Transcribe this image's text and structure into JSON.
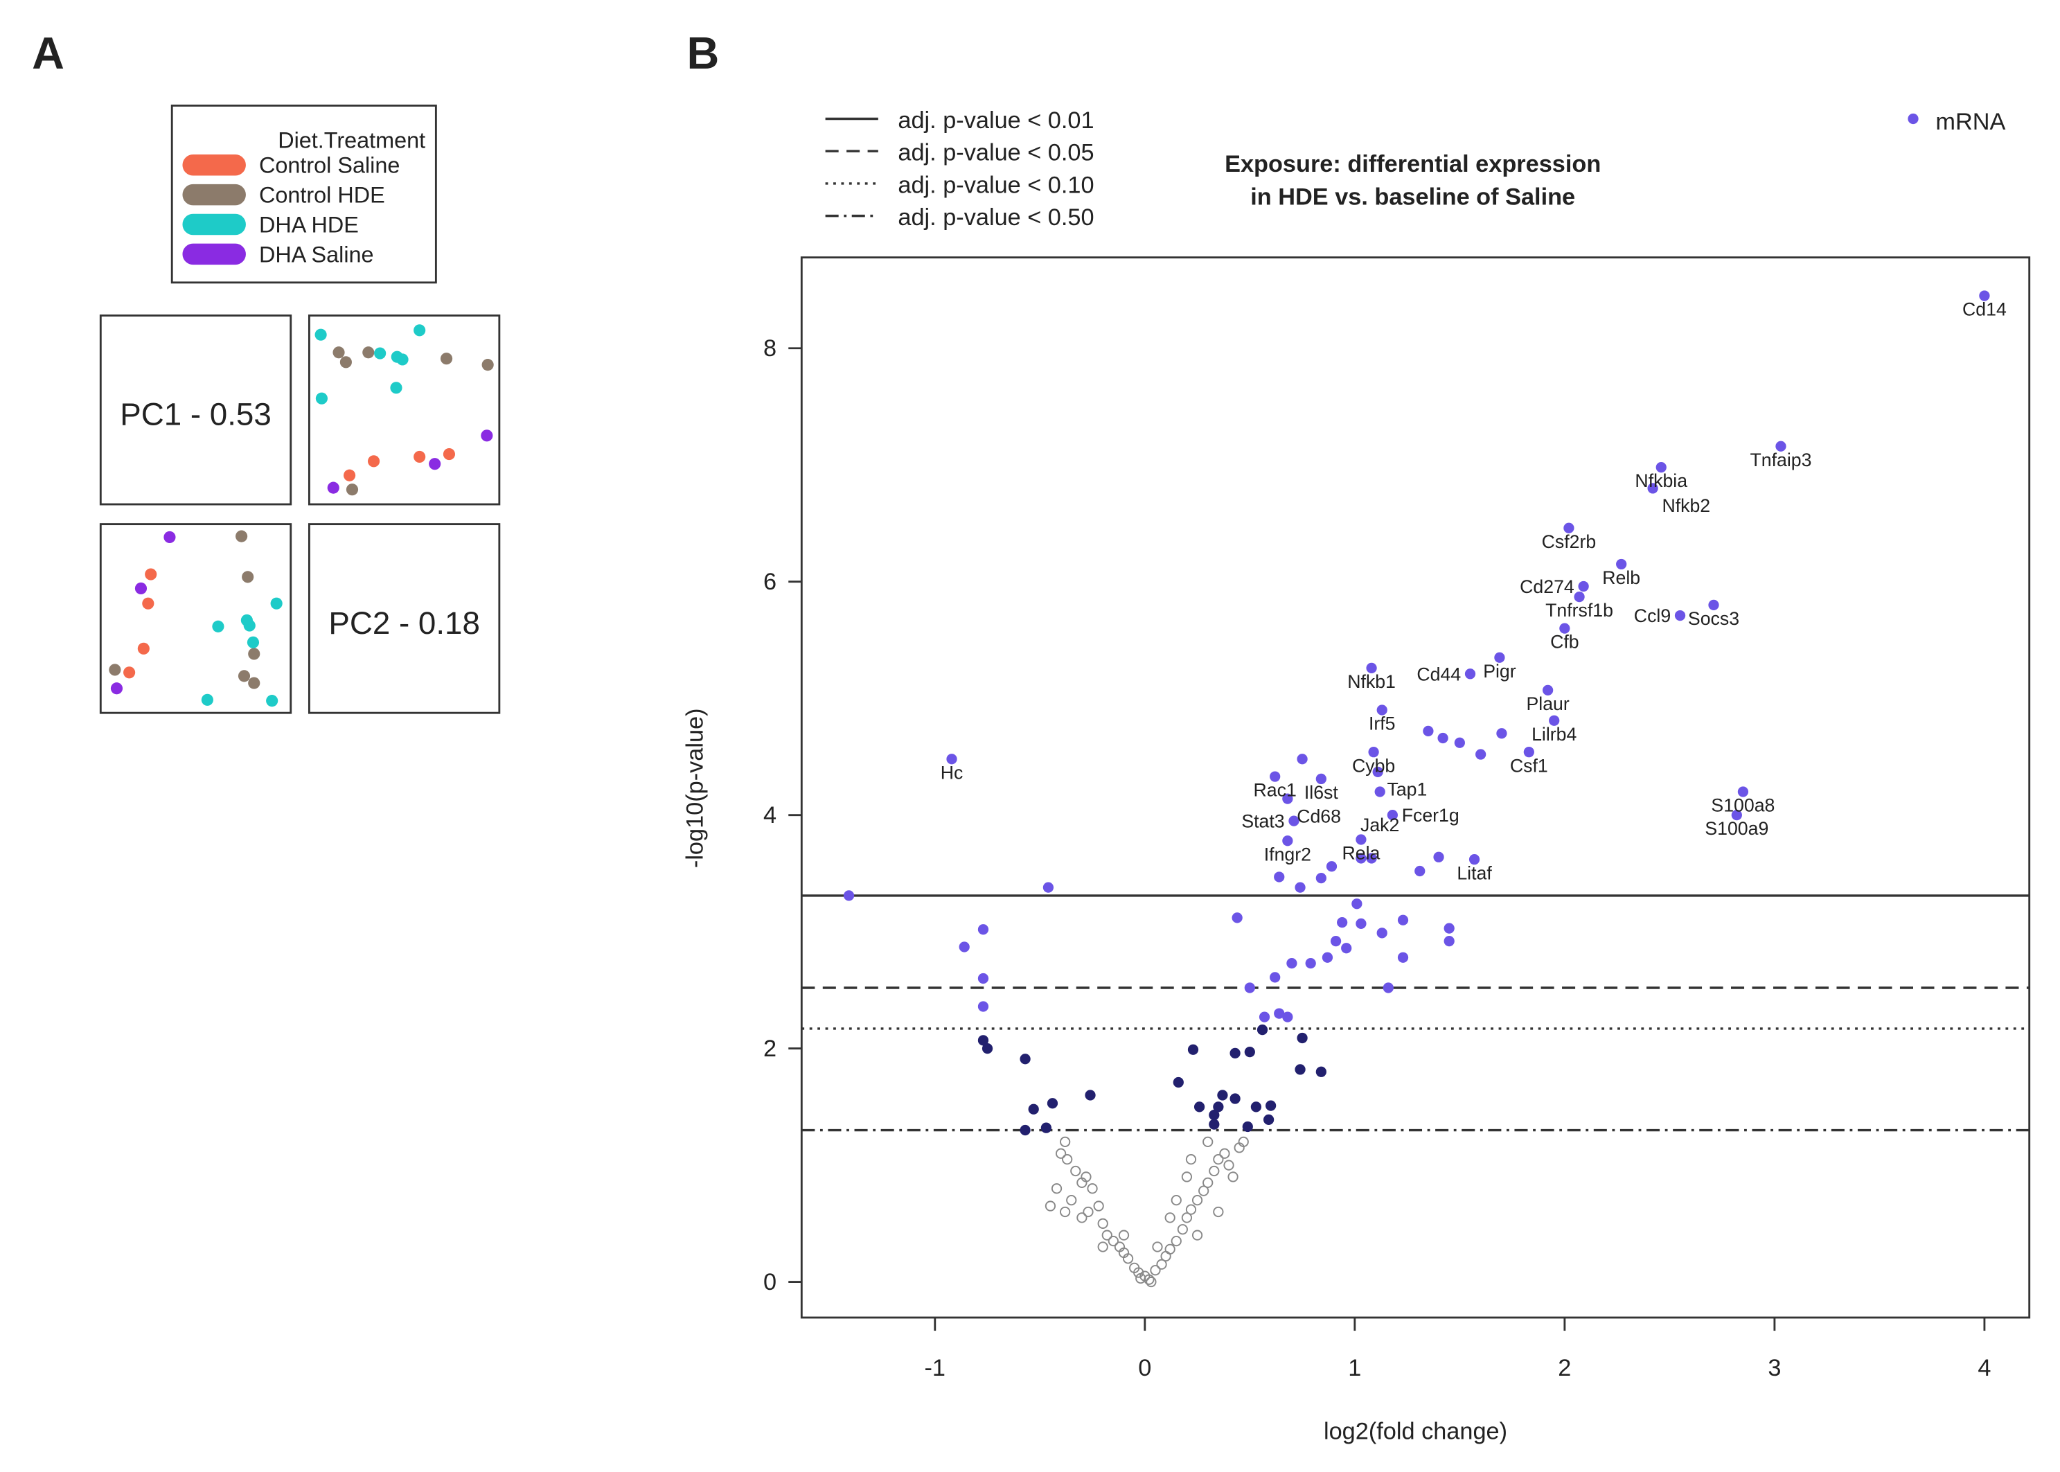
{
  "chart_data": [
    {
      "panel": "A",
      "type": "scatter",
      "panel_label": "A",
      "legend": {
        "title": "Diet.Treatment",
        "entries": [
          {
            "name": "Control Saline",
            "color": "#f4694b"
          },
          {
            "name": "Control HDE",
            "color": "#8c7b6b"
          },
          {
            "name": "DHA HDE",
            "color": "#1ecbc8"
          },
          {
            "name": "DHA Saline",
            "color": "#8a2be2"
          }
        ]
      },
      "diagonal_labels": [
        "PC1 - 0.53",
        "PC2 - 0.18"
      ],
      "score_range": [
        -1,
        1
      ],
      "series": [
        {
          "name": "DHA Saline",
          "points": [
            [
              -0.29,
              0.92
            ],
            [
              -0.61,
              0.34
            ],
            [
              -0.88,
              -0.79
            ]
          ]
        },
        {
          "name": "Control Saline",
          "points": [
            [
              -0.5,
              0.5
            ],
            [
              -0.53,
              0.17
            ],
            [
              -0.58,
              -0.34
            ],
            [
              -0.74,
              -0.61
            ]
          ]
        },
        {
          "name": "Control HDE",
          "points": [
            [
              0.51,
              0.93
            ],
            [
              0.58,
              0.47
            ],
            [
              0.65,
              -0.4
            ],
            [
              0.54,
              -0.65
            ],
            [
              0.65,
              -0.73
            ],
            [
              -0.9,
              -0.58
            ]
          ]
        },
        {
          "name": "DHA HDE",
          "points": [
            [
              0.25,
              -0.09
            ],
            [
              0.57,
              -0.02
            ],
            [
              0.6,
              -0.08
            ],
            [
              0.64,
              -0.27
            ],
            [
              0.9,
              0.17
            ],
            [
              0.85,
              -0.93
            ],
            [
              0.13,
              -0.92
            ]
          ]
        }
      ]
    },
    {
      "panel": "B",
      "type": "scatter",
      "panel_label": "B",
      "title": [
        "Exposure: differential expression",
        "in HDE vs. baseline of Saline"
      ],
      "xlabel": "log2(fold change)",
      "ylabel": "-log10(p-value)",
      "xlim": [
        -1.65,
        4.2
      ],
      "ylim": [
        -0.3,
        8.8
      ],
      "xticks": [
        -1,
        0,
        1,
        2,
        3,
        4
      ],
      "yticks": [
        0,
        2,
        4,
        6,
        8
      ],
      "legend_series": {
        "name": "mRNA",
        "color": "#6b54e6"
      },
      "thresholds": [
        {
          "label": "adj. p-value < 0.01",
          "y": 3.31,
          "style": "solid"
        },
        {
          "label": "adj. p-value < 0.05",
          "y": 2.52,
          "style": "dashed"
        },
        {
          "label": "adj. p-value < 0.10",
          "y": 2.17,
          "style": "dotted"
        },
        {
          "label": "adj. p-value < 0.50",
          "y": 1.3,
          "style": "dashdot"
        }
      ],
      "colors": {
        "significant": "#6b54e6",
        "moderate": "#22206e",
        "ns": "#888888"
      },
      "labeled_genes": [
        {
          "gene": "Cd14",
          "x": 4.0,
          "y": 8.45
        },
        {
          "gene": "Tnfaip3",
          "x": 3.03,
          "y": 7.16
        },
        {
          "gene": "Nfkbia",
          "x": 2.46,
          "y": 6.98
        },
        {
          "gene": "Nfkb2",
          "x": 2.42,
          "y": 6.8
        },
        {
          "gene": "Csf2rb",
          "x": 2.02,
          "y": 6.46
        },
        {
          "gene": "Relb",
          "x": 2.27,
          "y": 6.15
        },
        {
          "gene": "Cd274",
          "x": 2.09,
          "y": 5.96
        },
        {
          "gene": "Tnfrsf1b",
          "x": 2.07,
          "y": 5.87
        },
        {
          "gene": "Socs3",
          "x": 2.71,
          "y": 5.8
        },
        {
          "gene": "Ccl9",
          "x": 2.55,
          "y": 5.71
        },
        {
          "gene": "Cfb",
          "x": 2.0,
          "y": 5.6
        },
        {
          "gene": "Pigr",
          "x": 1.69,
          "y": 5.35
        },
        {
          "gene": "Cd44",
          "x": 1.55,
          "y": 5.21
        },
        {
          "gene": "Nfkb1",
          "x": 1.08,
          "y": 5.26
        },
        {
          "gene": "Plaur",
          "x": 1.92,
          "y": 5.07
        },
        {
          "gene": "Lilrb4",
          "x": 1.95,
          "y": 4.81
        },
        {
          "gene": "Irf5",
          "x": 1.13,
          "y": 4.9
        },
        {
          "gene": "Csf1",
          "x": 1.83,
          "y": 4.54
        },
        {
          "gene": "Cybb",
          "x": 1.09,
          "y": 4.54
        },
        {
          "gene": "Tap1",
          "x": 1.11,
          "y": 4.37
        },
        {
          "gene": "Il6st",
          "x": 0.84,
          "y": 4.31
        },
        {
          "gene": "Rac1",
          "x": 0.62,
          "y": 4.33
        },
        {
          "gene": "Cd68",
          "x": 0.68,
          "y": 4.14
        },
        {
          "gene": "Jak2",
          "x": 1.12,
          "y": 4.2
        },
        {
          "gene": "Fcer1g",
          "x": 1.18,
          "y": 4.0
        },
        {
          "gene": "Stat3",
          "x": 0.71,
          "y": 3.95
        },
        {
          "gene": "Ifngr2",
          "x": 0.68,
          "y": 3.78
        },
        {
          "gene": "Rela",
          "x": 1.03,
          "y": 3.79
        },
        {
          "gene": "Litaf",
          "x": 1.57,
          "y": 3.62
        },
        {
          "gene": "S100a8",
          "x": 2.85,
          "y": 4.2
        },
        {
          "gene": "S100a9",
          "x": 2.82,
          "y": 4.0
        },
        {
          "gene": "Hc",
          "x": -0.92,
          "y": 4.48
        }
      ],
      "significant_points": [
        [
          -1.41,
          3.31
        ],
        [
          -0.86,
          2.87
        ],
        [
          -0.77,
          3.02
        ],
        [
          -0.46,
          3.38
        ],
        [
          -0.77,
          2.6
        ],
        [
          -0.77,
          2.36
        ],
        [
          0.44,
          3.12
        ],
        [
          0.5,
          2.52
        ],
        [
          0.62,
          2.61
        ],
        [
          0.7,
          2.73
        ],
        [
          0.79,
          2.73
        ],
        [
          0.87,
          2.78
        ],
        [
          0.91,
          2.92
        ],
        [
          0.94,
          3.08
        ],
        [
          0.96,
          2.86
        ],
        [
          1.03,
          3.07
        ],
        [
          1.13,
          2.99
        ],
        [
          1.23,
          2.78
        ],
        [
          1.23,
          3.1
        ],
        [
          1.45,
          3.03
        ],
        [
          1.45,
          2.92
        ],
        [
          1.16,
          2.52
        ],
        [
          0.84,
          3.46
        ],
        [
          0.64,
          3.47
        ],
        [
          1.01,
          3.24
        ],
        [
          0.74,
          3.38
        ],
        [
          0.89,
          3.56
        ],
        [
          1.03,
          3.63
        ],
        [
          1.08,
          3.63
        ],
        [
          1.31,
          3.52
        ],
        [
          1.4,
          3.64
        ],
        [
          0.64,
          2.3
        ],
        [
          0.68,
          2.27
        ],
        [
          0.57,
          2.27
        ],
        [
          1.35,
          4.72
        ],
        [
          1.5,
          4.62
        ],
        [
          1.6,
          4.52
        ],
        [
          1.42,
          4.66
        ],
        [
          1.7,
          4.7
        ],
        [
          0.75,
          4.48
        ]
      ],
      "moderate_points": [
        [
          -0.77,
          2.07
        ],
        [
          -0.75,
          2.0
        ],
        [
          -0.57,
          1.91
        ],
        [
          -0.44,
          1.53
        ],
        [
          -0.26,
          1.6
        ],
        [
          -0.53,
          1.48
        ],
        [
          -0.57,
          1.3
        ],
        [
          -0.47,
          1.32
        ],
        [
          0.23,
          1.99
        ],
        [
          0.16,
          1.71
        ],
        [
          0.26,
          1.5
        ],
        [
          0.35,
          1.5
        ],
        [
          0.43,
          1.96
        ],
        [
          0.5,
          1.97
        ],
        [
          0.56,
          2.16
        ],
        [
          0.75,
          2.09
        ],
        [
          0.74,
          1.82
        ],
        [
          0.84,
          1.8
        ],
        [
          0.37,
          1.6
        ],
        [
          0.43,
          1.57
        ],
        [
          0.53,
          1.5
        ],
        [
          0.59,
          1.39
        ],
        [
          0.33,
          1.43
        ],
        [
          0.49,
          1.33
        ],
        [
          0.6,
          1.51
        ],
        [
          0.33,
          1.35
        ]
      ],
      "ns_points": [
        [
          -0.38,
          1.2
        ],
        [
          -0.4,
          1.1
        ],
        [
          -0.37,
          1.05
        ],
        [
          -0.33,
          0.95
        ],
        [
          -0.3,
          0.85
        ],
        [
          -0.25,
          0.8
        ],
        [
          -0.35,
          0.7
        ],
        [
          -0.38,
          0.6
        ],
        [
          -0.3,
          0.55
        ],
        [
          -0.27,
          0.6
        ],
        [
          -0.22,
          0.65
        ],
        [
          -0.2,
          0.5
        ],
        [
          -0.18,
          0.4
        ],
        [
          -0.15,
          0.35
        ],
        [
          -0.12,
          0.3
        ],
        [
          -0.1,
          0.25
        ],
        [
          -0.08,
          0.2
        ],
        [
          -0.05,
          0.12
        ],
        [
          -0.03,
          0.08
        ],
        [
          0,
          0.05
        ],
        [
          0.02,
          0.02
        ],
        [
          0.05,
          0.1
        ],
        [
          0.08,
          0.15
        ],
        [
          0.1,
          0.22
        ],
        [
          0.12,
          0.28
        ],
        [
          0.15,
          0.35
        ],
        [
          0.18,
          0.45
        ],
        [
          0.2,
          0.55
        ],
        [
          0.22,
          0.62
        ],
        [
          0.25,
          0.7
        ],
        [
          0.28,
          0.78
        ],
        [
          0.3,
          0.85
        ],
        [
          0.33,
          0.95
        ],
        [
          0.35,
          1.05
        ],
        [
          0.38,
          1.1
        ],
        [
          0.4,
          1.0
        ],
        [
          0.42,
          0.9
        ],
        [
          0.45,
          1.15
        ],
        [
          0.47,
          1.2
        ],
        [
          0.3,
          1.2
        ],
        [
          0.22,
          1.05
        ],
        [
          0.2,
          0.9
        ],
        [
          0.15,
          0.7
        ],
        [
          0.12,
          0.55
        ],
        [
          -0.1,
          0.4
        ],
        [
          -0.2,
          0.3
        ],
        [
          -0.28,
          0.9
        ],
        [
          -0.42,
          0.8
        ],
        [
          -0.45,
          0.65
        ],
        [
          0.03,
          0.0
        ],
        [
          -0.02,
          0.03
        ],
        [
          0.06,
          0.3
        ],
        [
          0.25,
          0.4
        ],
        [
          0.35,
          0.6
        ]
      ]
    }
  ]
}
